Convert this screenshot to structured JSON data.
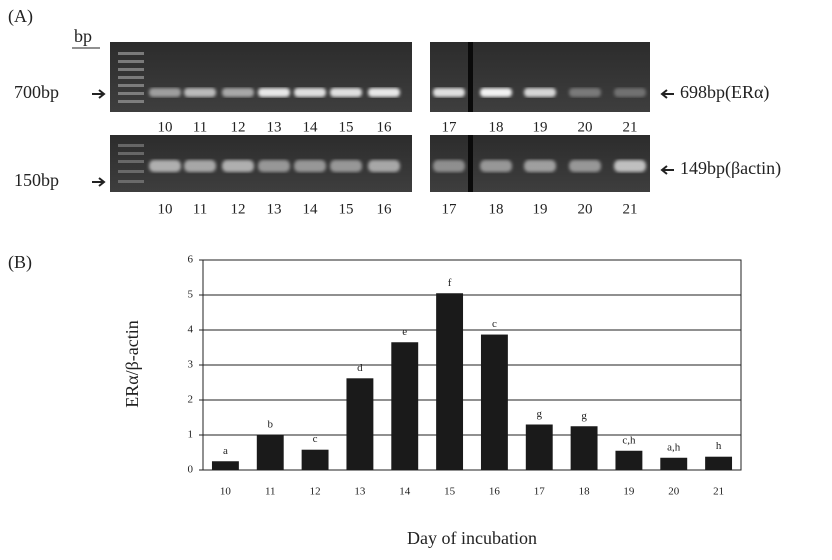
{
  "panel_a": {
    "label": "(A)",
    "unit": "bp",
    "top_row": {
      "marker": "700bp",
      "product": "698bp(ERα)",
      "lanes": [
        "10",
        "11",
        "12",
        "13",
        "14",
        "15",
        "16",
        "17",
        "18",
        "19",
        "20",
        "21"
      ]
    },
    "bottom_row": {
      "marker": "150bp",
      "product": "149bp(βactin)",
      "lanes": [
        "10",
        "11",
        "12",
        "13",
        "14",
        "15",
        "16",
        "17",
        "18",
        "19",
        "20",
        "21"
      ]
    }
  },
  "chart_data": {
    "type": "bar",
    "panel_label": "(B)",
    "y_label": "ERα/β-actin",
    "x_label": "Day of incubation",
    "categories": [
      "10",
      "11",
      "12",
      "13",
      "14",
      "15",
      "16",
      "17",
      "18",
      "19",
      "20",
      "21"
    ],
    "values": [
      0.25,
      1.0,
      0.58,
      2.62,
      3.65,
      5.05,
      3.87,
      1.3,
      1.25,
      0.55,
      0.35,
      0.38
    ],
    "annotations": [
      "a",
      "b",
      "c",
      "d",
      "e",
      "f",
      "c",
      "g",
      "g",
      "c,h",
      "a,h",
      "h"
    ],
    "color": "#1a1a1a",
    "ylim": [
      0,
      6
    ],
    "yticks": [
      0,
      1,
      2,
      3,
      4,
      5,
      6
    ],
    "grid": true
  }
}
